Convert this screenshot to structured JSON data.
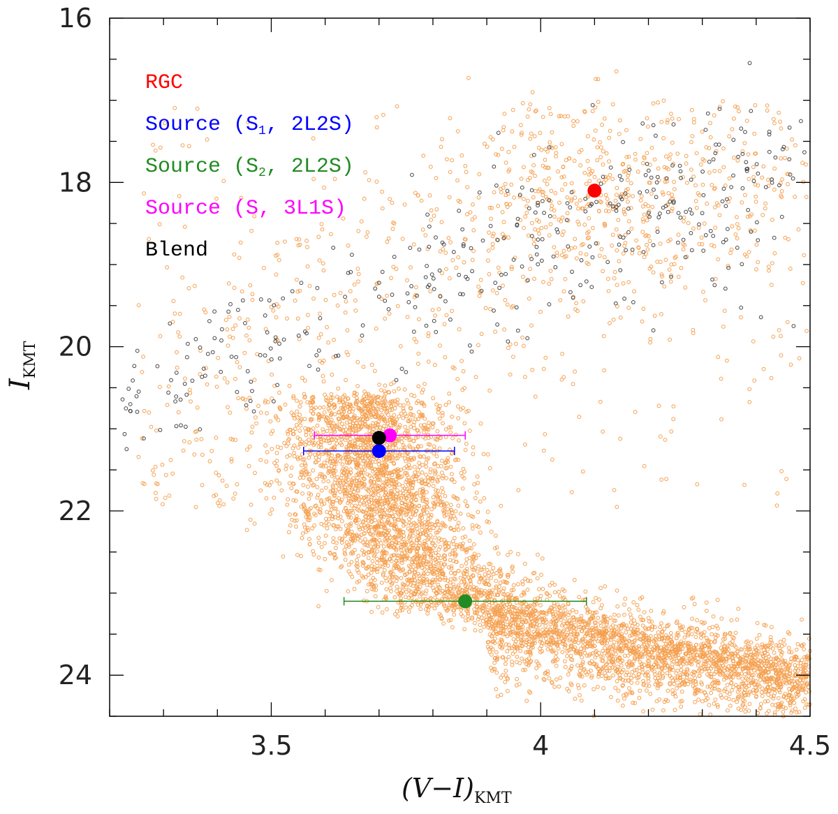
{
  "chart_data": {
    "type": "scatter",
    "title": "",
    "xlabel": "(V−I)",
    "xlabel_sub": "KMT",
    "ylabel": "I",
    "ylabel_sub": "KMT",
    "xlim": [
      3.2,
      4.5
    ],
    "ylim": [
      24.5,
      16
    ],
    "x_ticks": [
      3.5,
      4,
      4.5
    ],
    "x_tick_labels": [
      "3.5",
      "4",
      "4.5"
    ],
    "y_ticks": [
      16,
      18,
      20,
      22,
      24
    ],
    "y_tick_labels": [
      "16",
      "18",
      "20",
      "22",
      "24"
    ],
    "grid": false,
    "legend": [
      {
        "label": "RGC",
        "color": "#ff0000"
      },
      {
        "label": "Source (S",
        "sub": "1",
        "label_end": ", 2L2S)",
        "color": "#0000ff"
      },
      {
        "label": "Source (S",
        "sub": "2",
        "label_end": ", 2L2S)",
        "color": "#228b22"
      },
      {
        "label": "Source (S, 3L1S)",
        "color": "#ff00ff"
      },
      {
        "label": "Blend",
        "color": "#000000"
      }
    ],
    "series": [
      {
        "name": "RGC",
        "color": "#ff0000",
        "x": [
          4.1
        ],
        "y": [
          18.1
        ]
      },
      {
        "name": "Source (S1, 2L2S)",
        "color": "#0000ff",
        "x": [
          3.7
        ],
        "y": [
          21.27
        ],
        "xerr": [
          0.14
        ]
      },
      {
        "name": "Source (S2, 2L2S)",
        "color": "#228b22",
        "x": [
          3.86
        ],
        "y": [
          23.1
        ],
        "xerr": [
          0.225
        ]
      },
      {
        "name": "Source (S, 3L1S)",
        "color": "#ff00ff",
        "x": [
          3.72
        ],
        "y": [
          21.08
        ],
        "xerr": [
          0.14
        ]
      },
      {
        "name": "Blend",
        "color": "#000000",
        "x": [
          3.7
        ],
        "y": [
          21.11
        ]
      }
    ],
    "background_field": {
      "bulge_stars_color": "#f5a050",
      "disk_stars_color": "#444444"
    }
  }
}
